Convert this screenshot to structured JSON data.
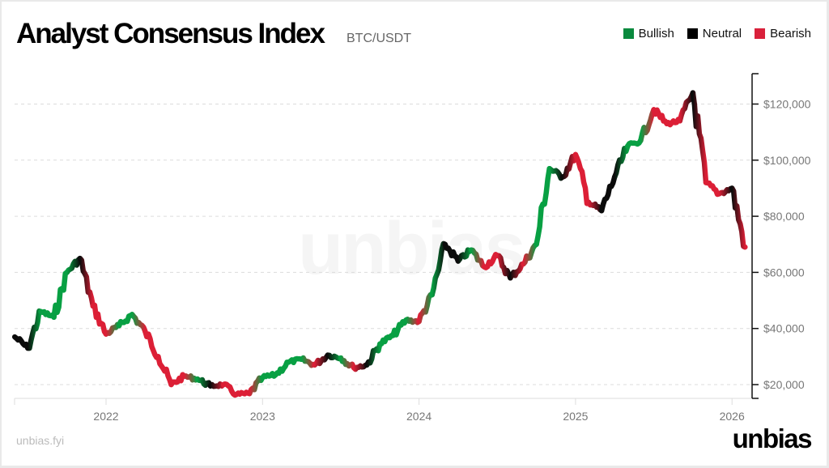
{
  "header": {
    "title": "Analyst Consensus Index",
    "subtitle": "BTC/USDT"
  },
  "legend": [
    {
      "label": "Bullish",
      "color": "#0a8a3e"
    },
    {
      "label": "Neutral",
      "color": "#000000"
    },
    {
      "label": "Bearish",
      "color": "#d9213b"
    }
  ],
  "footer": {
    "url": "unbias.fyi",
    "logo": "unbias"
  },
  "watermark": "unbias",
  "chart_data": {
    "type": "line",
    "title": "Analyst Consensus Index",
    "subtitle": "BTC/USDT",
    "xlabel": "",
    "ylabel": "",
    "x_ticks": [
      "2022",
      "2023",
      "2024",
      "2025",
      "2026"
    ],
    "y_ticks": [
      "$20,000",
      "$40,000",
      "$60,000",
      "$80,000",
      "$100,000",
      "$120,000"
    ],
    "ylim": [
      15000,
      130000
    ],
    "xlim": [
      "2021-06",
      "2026-02"
    ],
    "grid": {
      "horizontal": true,
      "style": "dashed"
    },
    "legend_position": "top-right",
    "color_encoding": "line segment color = analyst sentiment (Bullish green, Neutral black, Bearish red)",
    "series": [
      {
        "name": "BTC/USDT",
        "points": [
          {
            "x": "2021-06",
            "y": 37000,
            "s": "neutral"
          },
          {
            "x": "2021-07",
            "y": 33000,
            "s": "neutral"
          },
          {
            "x": "2021-08",
            "y": 46000,
            "s": "bullish"
          },
          {
            "x": "2021-09",
            "y": 44000,
            "s": "bullish"
          },
          {
            "x": "2021-10",
            "y": 60000,
            "s": "bullish"
          },
          {
            "x": "2021-11",
            "y": 65000,
            "s": "neutral"
          },
          {
            "x": "2021-12",
            "y": 48000,
            "s": "bearish"
          },
          {
            "x": "2022-01",
            "y": 38000,
            "s": "bearish"
          },
          {
            "x": "2022-02",
            "y": 41000,
            "s": "bullish"
          },
          {
            "x": "2022-03",
            "y": 45000,
            "s": "bullish"
          },
          {
            "x": "2022-04",
            "y": 39000,
            "s": "bearish"
          },
          {
            "x": "2022-05",
            "y": 30000,
            "s": "bearish"
          },
          {
            "x": "2022-06",
            "y": 20000,
            "s": "bearish"
          },
          {
            "x": "2022-07",
            "y": 23000,
            "s": "bearish"
          },
          {
            "x": "2022-08",
            "y": 22000,
            "s": "bullish"
          },
          {
            "x": "2022-09",
            "y": 19500,
            "s": "neutral"
          },
          {
            "x": "2022-10",
            "y": 20000,
            "s": "bearish"
          },
          {
            "x": "2022-11",
            "y": 16500,
            "s": "bearish"
          },
          {
            "x": "2022-12",
            "y": 16800,
            "s": "bearish"
          },
          {
            "x": "2023-01",
            "y": 22500,
            "s": "bullish"
          },
          {
            "x": "2023-02",
            "y": 23500,
            "s": "bullish"
          },
          {
            "x": "2023-03",
            "y": 28000,
            "s": "bullish"
          },
          {
            "x": "2023-04",
            "y": 29000,
            "s": "bullish"
          },
          {
            "x": "2023-05",
            "y": 27000,
            "s": "bearish"
          },
          {
            "x": "2023-06",
            "y": 30500,
            "s": "neutral"
          },
          {
            "x": "2023-07",
            "y": 29500,
            "s": "bullish"
          },
          {
            "x": "2023-08",
            "y": 26000,
            "s": "bearish"
          },
          {
            "x": "2023-09",
            "y": 27000,
            "s": "neutral"
          },
          {
            "x": "2023-10",
            "y": 34500,
            "s": "bullish"
          },
          {
            "x": "2023-11",
            "y": 37500,
            "s": "bullish"
          },
          {
            "x": "2023-12",
            "y": 43000,
            "s": "bullish"
          },
          {
            "x": "2024-01",
            "y": 42500,
            "s": "bearish"
          },
          {
            "x": "2024-02",
            "y": 52000,
            "s": "bullish"
          },
          {
            "x": "2024-03",
            "y": 70000,
            "s": "neutral"
          },
          {
            "x": "2024-04",
            "y": 64000,
            "s": "neutral"
          },
          {
            "x": "2024-05",
            "y": 68000,
            "s": "bullish"
          },
          {
            "x": "2024-06",
            "y": 62000,
            "s": "bearish"
          },
          {
            "x": "2024-07",
            "y": 66000,
            "s": "bearish"
          },
          {
            "x": "2024-08",
            "y": 58000,
            "s": "neutral"
          },
          {
            "x": "2024-09",
            "y": 63000,
            "s": "bearish"
          },
          {
            "x": "2024-10",
            "y": 70000,
            "s": "bullish"
          },
          {
            "x": "2024-11",
            "y": 97000,
            "s": "bullish"
          },
          {
            "x": "2024-12",
            "y": 94000,
            "s": "neutral"
          },
          {
            "x": "2025-01",
            "y": 102000,
            "s": "bearish"
          },
          {
            "x": "2025-02",
            "y": 85000,
            "s": "bearish"
          },
          {
            "x": "2025-03",
            "y": 82000,
            "s": "neutral"
          },
          {
            "x": "2025-04",
            "y": 94000,
            "s": "neutral"
          },
          {
            "x": "2025-05",
            "y": 105000,
            "s": "bullish"
          },
          {
            "x": "2025-06",
            "y": 107000,
            "s": "bullish"
          },
          {
            "x": "2025-07",
            "y": 118000,
            "s": "bearish"
          },
          {
            "x": "2025-08",
            "y": 113000,
            "s": "bearish"
          },
          {
            "x": "2025-09",
            "y": 114000,
            "s": "bearish"
          },
          {
            "x": "2025-10",
            "y": 124000,
            "s": "neutral"
          },
          {
            "x": "2025-11",
            "y": 92000,
            "s": "bearish"
          },
          {
            "x": "2025-12",
            "y": 88000,
            "s": "bearish"
          },
          {
            "x": "2026-01",
            "y": 90000,
            "s": "neutral"
          },
          {
            "x": "2026-02",
            "y": 69000,
            "s": "bearish"
          }
        ]
      }
    ]
  }
}
